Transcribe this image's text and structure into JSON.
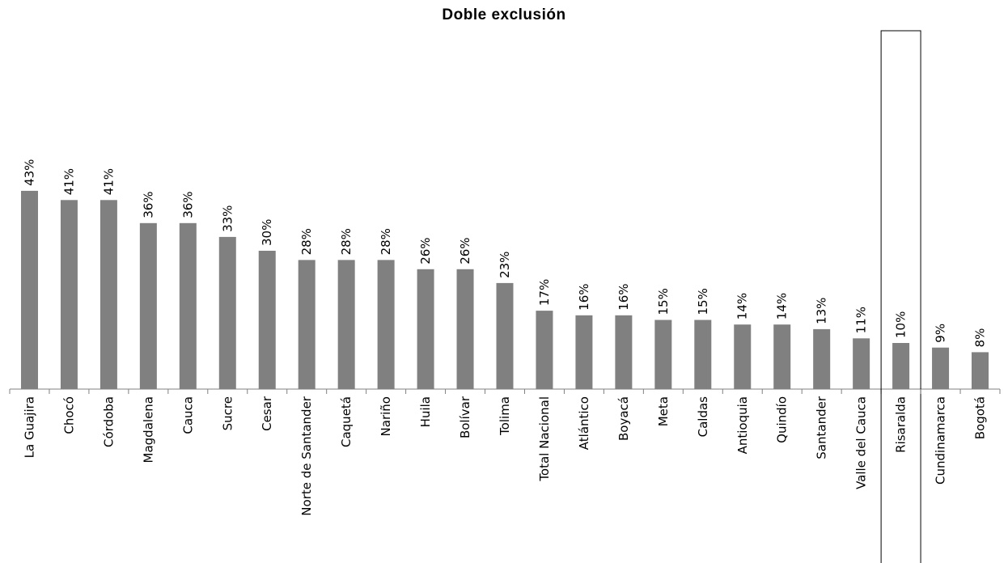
{
  "chart_data": {
    "type": "bar",
    "title": "Doble exclusión",
    "xlabel": "",
    "ylabel": "",
    "ylim": [
      0,
      80
    ],
    "grid": false,
    "legend": "none",
    "bar_color": "#808080",
    "highlight_category": "Risaralda",
    "categories": [
      "La Guajira",
      "Chocó",
      "Córdoba",
      "Magdalena",
      "Cauca",
      "Sucre",
      "Cesar",
      "Norte de Santander",
      "Caquetá",
      "Nariño",
      "Huila",
      "Bolívar",
      "Tolima",
      "Total Nacional",
      "Atlántico",
      "Boyacá",
      "Meta",
      "Caldas",
      "Antioquia",
      "Quindío",
      "Santander",
      "Valle del Cauca",
      "Risaralda",
      "Cundinamarca",
      "Bogotá"
    ],
    "values": [
      43,
      41,
      41,
      36,
      36,
      33,
      30,
      28,
      28,
      28,
      26,
      26,
      23,
      17,
      16,
      16,
      15,
      15,
      14,
      14,
      13,
      11,
      10,
      9,
      8
    ],
    "labels": [
      "43%",
      "41%",
      "41%",
      "36%",
      "36%",
      "33%",
      "30%",
      "28%",
      "28%",
      "28%",
      "26%",
      "26%",
      "23%",
      "17%",
      "16%",
      "16%",
      "15%",
      "15%",
      "14%",
      "14%",
      "13%",
      "11%",
      "10%",
      "9%",
      "8%"
    ]
  }
}
